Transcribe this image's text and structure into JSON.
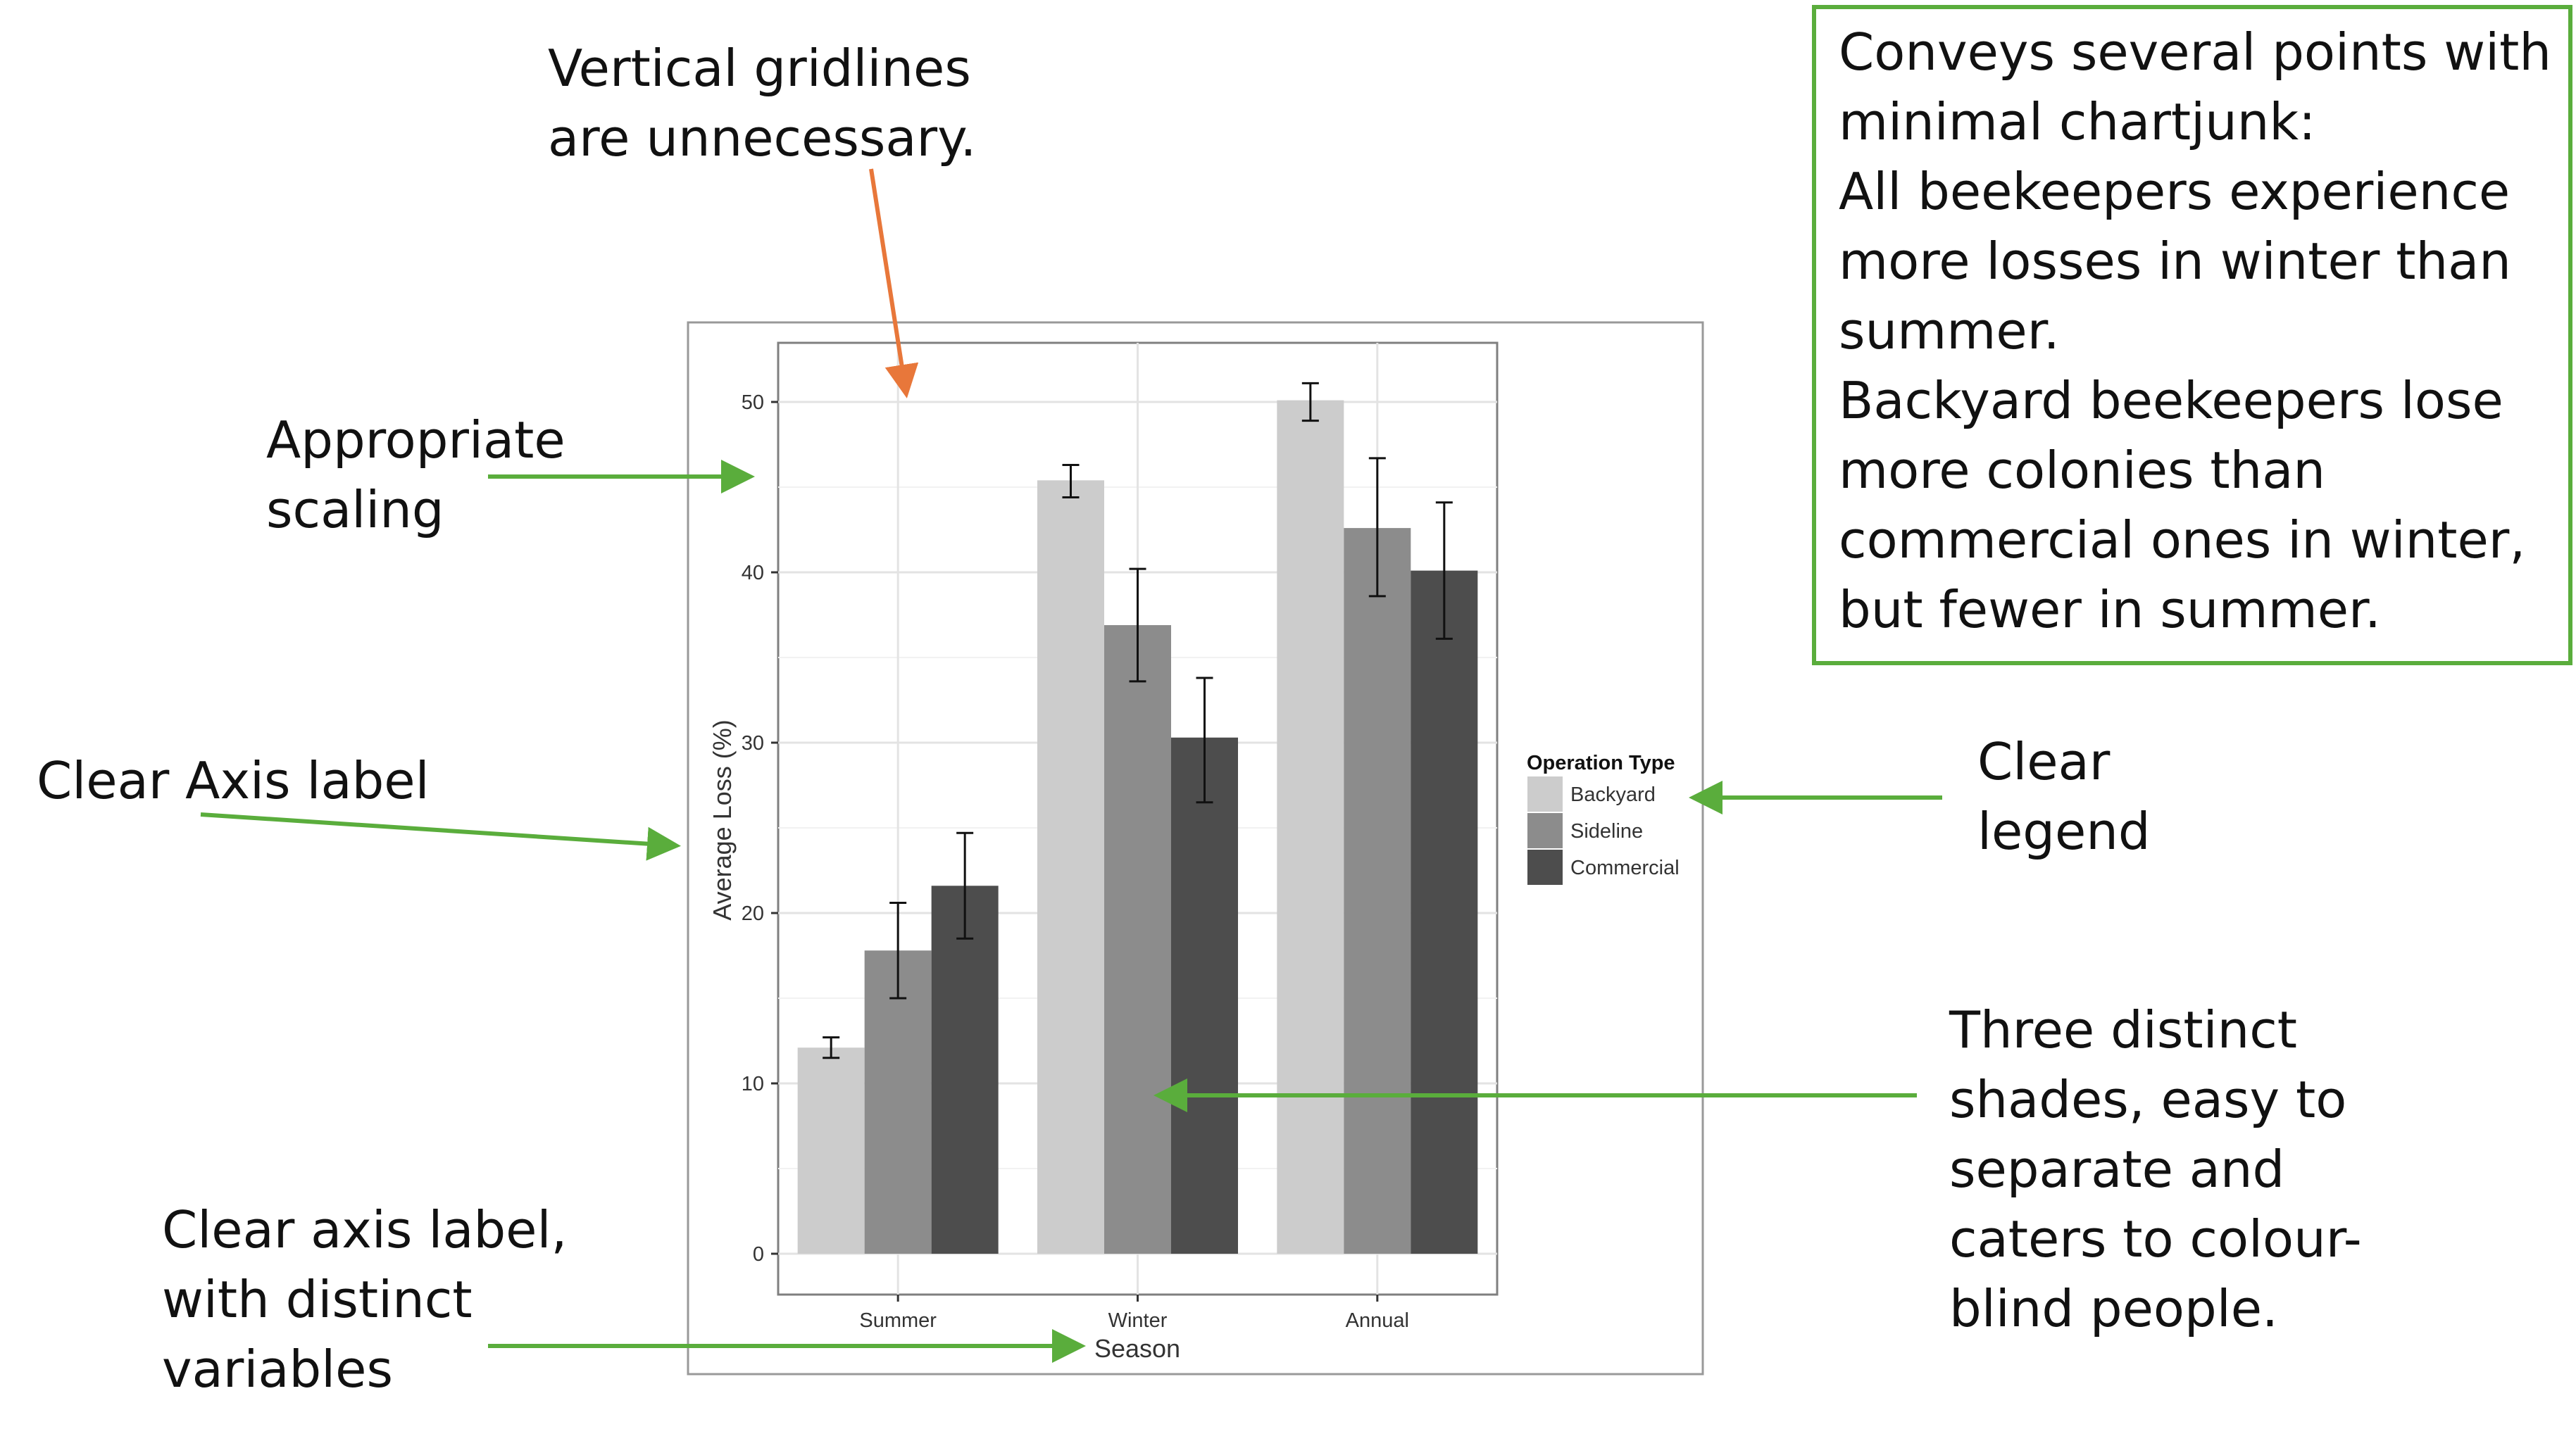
{
  "chart_data": {
    "type": "bar",
    "title": "",
    "xlabel": "Season",
    "ylabel": "Average Loss (%)",
    "categories": [
      "Summer",
      "Winter",
      "Annual"
    ],
    "ylim": [
      0,
      52
    ],
    "yticks": [
      0,
      10,
      20,
      30,
      40,
      50
    ],
    "grid": true,
    "legend": {
      "title": "Operation Type",
      "placement": "right"
    },
    "series": [
      {
        "name": "Backyard",
        "color": "#cccccc",
        "values": [
          12.1,
          45.4,
          50.1
        ],
        "err_low": [
          11.5,
          44.4,
          48.9
        ],
        "err_high": [
          12.7,
          46.3,
          51.1
        ]
      },
      {
        "name": "Sideline",
        "color": "#8c8c8c",
        "values": [
          17.8,
          36.9,
          42.6
        ],
        "err_low": [
          15.0,
          33.6,
          38.6
        ],
        "err_high": [
          20.6,
          40.2,
          46.7
        ]
      },
      {
        "name": "Commercial",
        "color": "#4d4d4d",
        "values": [
          21.6,
          30.3,
          40.1
        ],
        "err_low": [
          18.5,
          26.5,
          36.1
        ],
        "err_high": [
          24.7,
          33.8,
          44.1
        ]
      }
    ]
  },
  "annotations": {
    "gridlines": [
      "Vertical gridlines",
      "are unnecessary."
    ],
    "scaling": [
      "Appropriate",
      "scaling"
    ],
    "axis_label": [
      "Clear Axis label"
    ],
    "x_axis_label": [
      "Clear axis label,",
      "with distinct",
      "variables"
    ],
    "legend": [
      "Clear",
      "legend"
    ],
    "shades": [
      "Three distinct",
      "shades, easy to",
      "separate and",
      "caters to colour-",
      "blind people."
    ],
    "summary": [
      "Conveys several points with",
      "minimal chartjunk:",
      "All beekeepers experience",
      "more losses in winter than",
      "summer.",
      "Backyard beekeepers lose",
      "more colonies than",
      "commercial ones in winter,",
      "but fewer in summer."
    ]
  },
  "colors": {
    "arrow_green": "#5aad3c",
    "arrow_orange": "#e8773a",
    "box_border": "#5aad3c"
  }
}
